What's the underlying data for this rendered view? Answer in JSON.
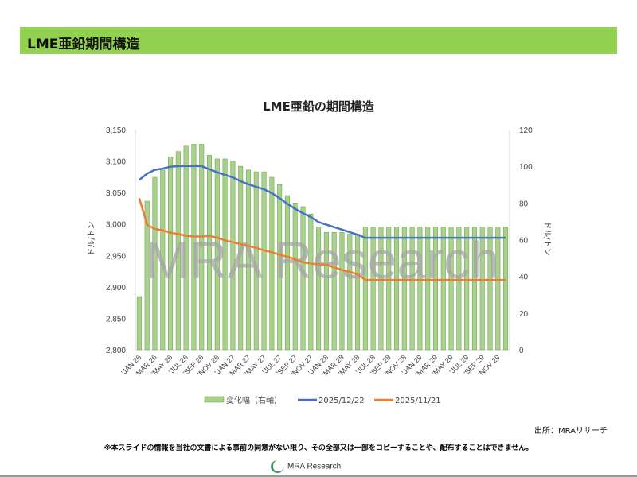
{
  "header": {
    "title": "LME亜鉛期間構造"
  },
  "chart_data": {
    "type": "bar+line",
    "title": "LME亜鉛の期間構造",
    "ylabel_left": "ドル/トン",
    "ylabel_right": "ドル/トン",
    "ylim_left": [
      2800,
      3150
    ],
    "yticks_left": [
      "2,800",
      "2,850",
      "2,900",
      "2,950",
      "3,000",
      "3,050",
      "3,100",
      "3,150"
    ],
    "ylim_right": [
      0,
      120
    ],
    "yticks_right": [
      "0",
      "20",
      "40",
      "60",
      "80",
      "100",
      "120"
    ],
    "x_tick_labels": [
      "'JAN 26",
      "'MAR 26",
      "'MAY 26",
      "'JUL 26",
      "'SEP 26",
      "'NOV 26",
      "'JAN 27",
      "'MAR 27",
      "'MAY 27",
      "'JUL 27",
      "'SEP 27",
      "'NOV 27",
      "'JAN 28",
      "'MAR 28",
      "'MAY 28",
      "'JUL 28",
      "'SEP 28",
      "'NOV 28",
      "'JAN 29",
      "'MAR 29",
      "'MAY 29",
      "'JUL 29",
      "'SEP 29",
      "'NOV 29"
    ],
    "months_count": 48,
    "series": [
      {
        "name": "変化幅（右軸）",
        "type": "bar",
        "axis": "right",
        "color": "#a9d18e",
        "values": [
          29,
          81,
          94,
          98,
          105,
          108,
          111,
          112,
          112,
          106,
          104,
          104,
          103,
          100,
          98,
          97,
          97,
          94,
          90,
          84,
          80,
          78,
          74,
          67,
          64,
          64,
          64,
          63,
          63,
          67,
          67,
          67,
          67,
          67,
          67,
          67,
          67,
          67,
          67,
          67,
          67,
          67,
          67,
          67,
          67,
          67,
          67,
          67
        ]
      },
      {
        "name": "2025/12/22",
        "type": "line",
        "axis": "left",
        "color": "#4472c4",
        "values": [
          3070,
          3080,
          3086,
          3088,
          3091,
          3092,
          3092,
          3092,
          3092,
          3087,
          3082,
          3078,
          3074,
          3068,
          3063,
          3059,
          3055,
          3049,
          3041,
          3032,
          3024,
          3017,
          3011,
          3003,
          2999,
          2995,
          2991,
          2987,
          2983,
          2978,
          2978,
          2978,
          2978,
          2978,
          2978,
          2978,
          2978,
          2978,
          2978,
          2978,
          2978,
          2978,
          2978,
          2978,
          2978,
          2978,
          2978,
          2978
        ]
      },
      {
        "name": "2025/11/21",
        "type": "line",
        "axis": "left",
        "color": "#ed7d31",
        "values": [
          3041,
          2999,
          2992,
          2990,
          2986,
          2984,
          2981,
          2980,
          2980,
          2981,
          2978,
          2974,
          2971,
          2968,
          2965,
          2962,
          2958,
          2955,
          2951,
          2948,
          2944,
          2939,
          2937,
          2936,
          2935,
          2931,
          2927,
          2924,
          2920,
          2911,
          2911,
          2911,
          2911,
          2911,
          2911,
          2911,
          2911,
          2911,
          2911,
          2911,
          2911,
          2911,
          2911,
          2911,
          2911,
          2911,
          2911,
          2911
        ]
      }
    ],
    "legend": "bottom",
    "watermark": "MRA Research"
  },
  "footer": {
    "source": "出所：MRAリサーチ",
    "disclaimer": "※本スライドの情報を当社の文書による事前の同意がない限り、その全部又は一部をコピーすることや、配布することはできません。",
    "logo_text": "MRA Research"
  }
}
